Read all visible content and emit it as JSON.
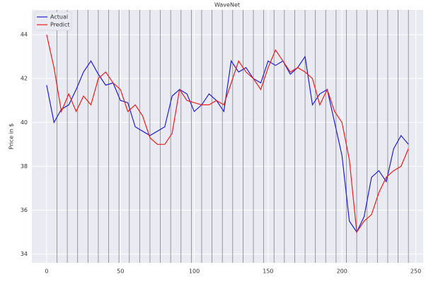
{
  "chart_data": {
    "type": "line",
    "title": "WaveNet",
    "y_label": "Price in $",
    "x": [
      0,
      5,
      10,
      15,
      20,
      25,
      30,
      35,
      40,
      45,
      50,
      55,
      60,
      65,
      70,
      75,
      80,
      85,
      90,
      95,
      100,
      105,
      110,
      115,
      120,
      125,
      130,
      135,
      140,
      145,
      150,
      155,
      160,
      165,
      170,
      175,
      180,
      185,
      190,
      195,
      200,
      205,
      210,
      215,
      220,
      225,
      230,
      235,
      240,
      245
    ],
    "series": [
      {
        "name": "Actual",
        "color": "#1f1fd6",
        "values": [
          41.7,
          40.0,
          40.6,
          40.8,
          41.5,
          42.3,
          42.8,
          42.2,
          41.7,
          41.8,
          41.0,
          40.9,
          39.8,
          39.6,
          39.4,
          39.6,
          39.8,
          41.2,
          41.5,
          41.3,
          40.5,
          40.8,
          41.3,
          41.0,
          40.5,
          42.8,
          42.3,
          42.5,
          42.0,
          41.8,
          42.8,
          42.6,
          42.8,
          42.2,
          42.5,
          43.0,
          40.8,
          41.3,
          41.5,
          40.0,
          38.5,
          35.5,
          35.0,
          35.7,
          37.5,
          37.8,
          37.3,
          38.8,
          39.4,
          39.0
        ]
      },
      {
        "name": "Predict",
        "color": "#ee1c1c",
        "values": [
          44.0,
          42.5,
          40.5,
          41.3,
          40.5,
          41.2,
          40.8,
          42.0,
          42.3,
          41.8,
          41.5,
          40.5,
          40.8,
          40.3,
          39.3,
          39.0,
          39.0,
          39.5,
          41.5,
          41.0,
          40.9,
          40.8,
          40.8,
          41.0,
          40.8,
          41.8,
          42.8,
          42.3,
          42.0,
          41.5,
          42.5,
          43.3,
          42.8,
          42.3,
          42.5,
          42.3,
          42.0,
          40.8,
          41.5,
          40.5,
          40.0,
          38.3,
          35.0,
          35.5,
          35.8,
          36.8,
          37.5,
          37.8,
          38.0,
          38.8
        ]
      }
    ],
    "vlines": [
      7,
      14,
      21,
      28,
      35,
      42,
      49,
      56,
      63,
      70,
      77,
      84,
      91,
      98,
      105,
      112,
      119,
      126,
      133,
      140,
      147,
      154,
      161,
      168,
      175,
      182,
      189,
      196,
      203,
      210,
      217,
      224,
      231,
      238,
      245
    ],
    "xlim": [
      -10,
      255
    ],
    "ylim": [
      33.6,
      45.13
    ],
    "xticks": [
      0,
      50,
      100,
      150,
      200,
      250
    ],
    "yticks": [
      34,
      36,
      38,
      40,
      42,
      44
    ],
    "grid": true,
    "legend": "upper left"
  }
}
